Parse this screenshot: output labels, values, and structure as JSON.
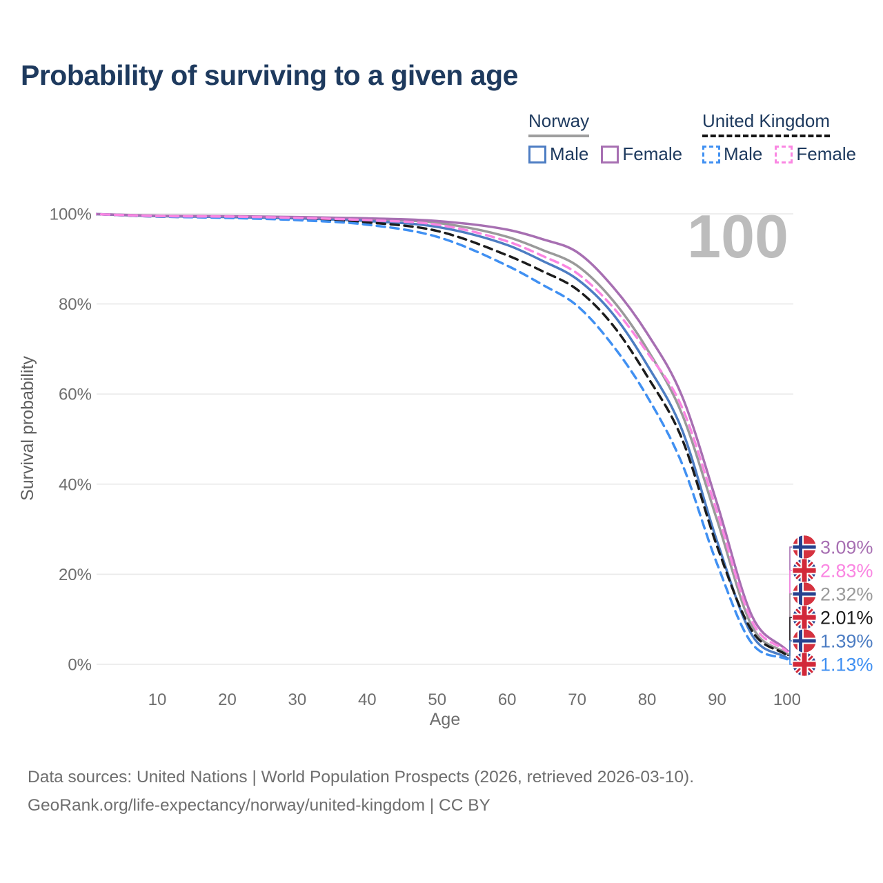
{
  "title": "Probability of surviving to a given age",
  "watermark_age": "100",
  "legend": {
    "groups": [
      {
        "name": "Norway",
        "line_style": "solid",
        "underline_color": "#9e9e9e",
        "items": [
          {
            "label": "Male",
            "color": "#4d7dc3"
          },
          {
            "label": "Female",
            "color": "#a76fb2"
          }
        ]
      },
      {
        "name": "United Kingdom",
        "line_style": "dashed",
        "underline_color": "#151515",
        "items": [
          {
            "label": "Male",
            "color": "#4090f2"
          },
          {
            "label": "Female",
            "color": "#fa86e2"
          }
        ]
      }
    ]
  },
  "y_axis": {
    "title": "Survival probability",
    "ticks": [
      {
        "value": 100,
        "label": "100%"
      },
      {
        "value": 80,
        "label": "80%"
      },
      {
        "value": 60,
        "label": "60%"
      },
      {
        "value": 40,
        "label": "40%"
      },
      {
        "value": 20,
        "label": "20%"
      },
      {
        "value": 0,
        "label": "0%"
      }
    ]
  },
  "x_axis": {
    "title": "Age",
    "ticks": [
      {
        "value": 10,
        "label": "10"
      },
      {
        "value": 20,
        "label": "20"
      },
      {
        "value": 30,
        "label": "30"
      },
      {
        "value": 40,
        "label": "40"
      },
      {
        "value": 50,
        "label": "50"
      },
      {
        "value": 60,
        "label": "60"
      },
      {
        "value": 70,
        "label": "70"
      },
      {
        "value": 80,
        "label": "80"
      },
      {
        "value": 90,
        "label": "90"
      },
      {
        "value": 100,
        "label": "100"
      }
    ]
  },
  "footer": {
    "line1": "Data sources: United Nations | World Population Prospects (2026, retrieved 2026-03-10).",
    "line2": "GeoRank.org/life-expectancy/norway/united-kingdom | CC BY"
  },
  "chart_data": {
    "type": "line",
    "title": "Probability of surviving to a given age",
    "xlabel": "Age",
    "ylabel": "Survival probability",
    "xlim": [
      0,
      100
    ],
    "ylim": [
      0,
      100
    ],
    "grid": "horizontal",
    "x": [
      0,
      10,
      20,
      30,
      40,
      50,
      60,
      65,
      70,
      75,
      80,
      85,
      90,
      95,
      100
    ],
    "series": [
      {
        "name": "Norway Female",
        "country": "Norway",
        "sex": "female",
        "flag": "norway",
        "color": "#a76fb2",
        "line": "solid",
        "end_label": "3.09%",
        "values": [
          100,
          99.6,
          99.5,
          99.3,
          99.0,
          98.4,
          96.5,
          94.4,
          91.5,
          84.0,
          73.5,
          59.5,
          35.7,
          10.7,
          3.09
        ]
      },
      {
        "name": "United Kingdom Female",
        "country": "United Kingdom",
        "sex": "female",
        "flag": "uk",
        "color": "#fa86e2",
        "line": "dashed",
        "end_label": "2.83%",
        "values": [
          100,
          99.5,
          99.4,
          99.1,
          98.6,
          97.6,
          93.9,
          90.7,
          86.8,
          79.5,
          69.3,
          57.0,
          33.8,
          9.5,
          2.83
        ]
      },
      {
        "name": "Norway",
        "country": "Norway",
        "sex": "both",
        "flag": "norway",
        "color": "#9a9a9a",
        "line": "solid",
        "end_label": "2.32%",
        "values": [
          100,
          99.5,
          99.4,
          99.2,
          98.8,
          98.0,
          94.9,
          92.0,
          88.5,
          81.0,
          70.0,
          55.5,
          32.0,
          8.4,
          2.32
        ]
      },
      {
        "name": "United Kingdom",
        "country": "United Kingdom",
        "sex": "both",
        "flag": "uk",
        "color": "#1c1c1c",
        "line": "dashed",
        "end_label": "2.01%",
        "values": [
          100,
          99.4,
          99.2,
          98.9,
          98.1,
          96.2,
          90.8,
          87.3,
          83.2,
          75.5,
          64.0,
          50.0,
          26.2,
          7.4,
          2.01
        ]
      },
      {
        "name": "Norway Male",
        "country": "Norway",
        "sex": "male",
        "flag": "norway",
        "color": "#4d7dc3",
        "line": "solid",
        "end_label": "1.39%",
        "values": [
          100,
          99.5,
          99.3,
          99.0,
          98.4,
          97.1,
          93.1,
          89.6,
          85.5,
          78.0,
          66.5,
          52.0,
          27.3,
          6.5,
          1.39
        ]
      },
      {
        "name": "United Kingdom Male",
        "country": "United Kingdom",
        "sex": "male",
        "flag": "uk",
        "color": "#4090f2",
        "line": "dashed",
        "end_label": "1.13%",
        "values": [
          100,
          99.4,
          99.1,
          98.6,
          97.6,
          94.9,
          88.5,
          84.3,
          79.6,
          71.0,
          59.5,
          44.5,
          22.3,
          4.6,
          1.13
        ]
      }
    ]
  }
}
